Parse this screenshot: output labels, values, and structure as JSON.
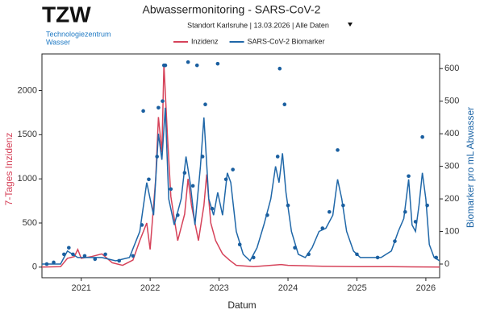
{
  "header": {
    "logo": "TZW",
    "org_line1": "Technologiezentrum",
    "org_line2": "Wasser"
  },
  "chart_data": {
    "type": "line",
    "title": "Abwassermonitoring - SARS-CoV-2",
    "subtitle": "Standort Karlsruhe  |  13.03.2026  |  Alle Daten",
    "x_label": "Datum",
    "y_label": "7-Tages Inzidenz",
    "y2_label": "Biomarker pro mL Abwasser",
    "xlim": [
      2020.43,
      2026.2
    ],
    "xticks": [
      2021,
      2022,
      2023,
      2024,
      2025,
      2026
    ],
    "ylim": [
      -120,
      2415
    ],
    "yticks": [
      0,
      500,
      1000,
      1500,
      2000
    ],
    "y2lim": [
      -42,
      645
    ],
    "y2ticks": [
      0,
      100,
      200,
      300,
      400,
      500,
      600
    ],
    "grid": false,
    "series": [
      {
        "name": "Inzidenz",
        "color": "#d6435a",
        "kind": "line",
        "axis": "y",
        "x": [
          2020.43,
          2020.7,
          2020.8,
          2020.9,
          2020.95,
          2021.0,
          2021.15,
          2021.3,
          2021.45,
          2021.6,
          2021.75,
          2021.85,
          2021.95,
          2022.0,
          2022.08,
          2022.12,
          2022.17,
          2022.2,
          2022.25,
          2022.3,
          2022.4,
          2022.5,
          2022.55,
          2022.6,
          2022.7,
          2022.78,
          2022.82,
          2022.88,
          2022.95,
          2023.05,
          2023.15,
          2023.25,
          2023.5,
          2023.9,
          2024.0,
          2024.5,
          2025.0,
          2025.5,
          2026.2
        ],
        "values": [
          0,
          5,
          100,
          120,
          200,
          100,
          120,
          150,
          50,
          20,
          80,
          300,
          500,
          200,
          1000,
          1700,
          1300,
          2300,
          1500,
          800,
          300,
          600,
          1000,
          700,
          300,
          700,
          1050,
          500,
          300,
          150,
          80,
          20,
          5,
          30,
          20,
          10,
          5,
          5,
          0
        ]
      },
      {
        "name": "SARS-CoV-2 Biomarker",
        "color": "#1f67a8",
        "kind": "line",
        "axis": "y2",
        "x": [
          2020.43,
          2020.7,
          2020.8,
          2020.95,
          2021.1,
          2021.3,
          2021.5,
          2021.7,
          2021.85,
          2021.95,
          2022.05,
          2022.12,
          2022.17,
          2022.22,
          2022.27,
          2022.35,
          2022.45,
          2022.52,
          2022.58,
          2022.65,
          2022.73,
          2022.78,
          2022.85,
          2022.92,
          2022.98,
          2023.05,
          2023.12,
          2023.17,
          2023.25,
          2023.35,
          2023.45,
          2023.55,
          2023.65,
          2023.75,
          2023.82,
          2023.87,
          2023.92,
          2023.97,
          2024.05,
          2024.15,
          2024.25,
          2024.35,
          2024.45,
          2024.55,
          2024.65,
          2024.72,
          2024.78,
          2024.85,
          2024.95,
          2025.05,
          2025.2,
          2025.35,
          2025.5,
          2025.6,
          2025.68,
          2025.75,
          2025.8,
          2025.85,
          2025.9,
          2025.95,
          2026.0,
          2026.05,
          2026.12,
          2026.2
        ],
        "values": [
          0,
          0,
          40,
          20,
          20,
          20,
          10,
          20,
          100,
          250,
          150,
          400,
          320,
          480,
          200,
          120,
          200,
          330,
          250,
          120,
          300,
          450,
          200,
          150,
          220,
          150,
          280,
          250,
          100,
          30,
          10,
          50,
          120,
          200,
          300,
          250,
          340,
          220,
          100,
          30,
          20,
          50,
          100,
          110,
          150,
          260,
          200,
          100,
          40,
          20,
          20,
          20,
          40,
          100,
          140,
          260,
          120,
          100,
          180,
          280,
          200,
          60,
          20,
          10
        ]
      },
      {
        "color": "#1a5fa0",
        "kind": "scatter",
        "axis": "y2",
        "x": [
          2020.5,
          2020.6,
          2020.75,
          2020.82,
          2020.88,
          2021.05,
          2021.2,
          2021.35,
          2021.55,
          2021.75,
          2021.88,
          2021.9,
          2021.98,
          2022.1,
          2022.12,
          2022.18,
          2022.2,
          2022.22,
          2022.3,
          2022.4,
          2022.5,
          2022.55,
          2022.62,
          2022.68,
          2022.76,
          2022.8,
          2022.9,
          2022.98,
          2023.1,
          2023.2,
          2023.3,
          2023.5,
          2023.7,
          2023.85,
          2023.88,
          2023.95,
          2024.0,
          2024.1,
          2024.3,
          2024.5,
          2024.6,
          2024.72,
          2024.8,
          2025.0,
          2025.3,
          2025.55,
          2025.7,
          2025.75,
          2025.85,
          2025.95,
          2026.02,
          2026.15
        ],
        "values": [
          0,
          5,
          30,
          50,
          30,
          25,
          15,
          30,
          10,
          25,
          120,
          470,
          260,
          330,
          480,
          500,
          610,
          610,
          230,
          150,
          280,
          620,
          240,
          610,
          330,
          490,
          170,
          615,
          260,
          290,
          60,
          20,
          150,
          330,
          600,
          490,
          180,
          50,
          30,
          110,
          160,
          350,
          180,
          30,
          20,
          70,
          160,
          270,
          130,
          390,
          180,
          20
        ]
      }
    ]
  }
}
